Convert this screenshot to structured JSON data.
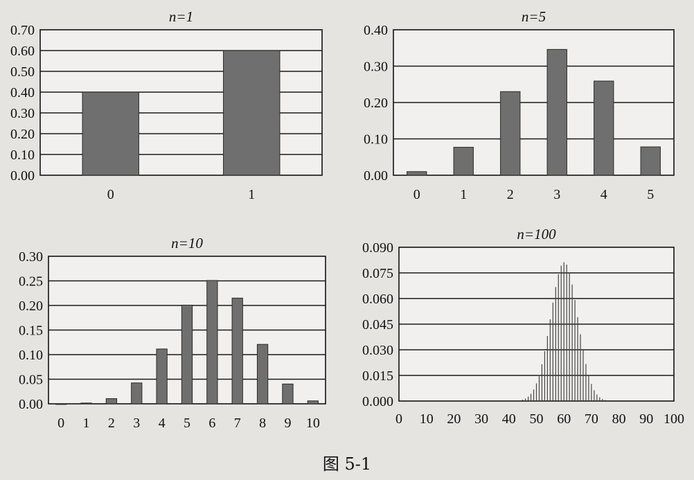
{
  "caption": "图 5-1",
  "chart_data": [
    {
      "type": "bar",
      "title": "n=1",
      "categories": [
        "0",
        "1"
      ],
      "values": [
        0.4,
        0.6
      ],
      "ylim": [
        0,
        0.7
      ],
      "yticks": [
        "0.00",
        "0.10",
        "0.20",
        "0.30",
        "0.40",
        "0.50",
        "0.60",
        "0.70"
      ],
      "grid": true
    },
    {
      "type": "bar",
      "title": "n=5",
      "categories": [
        "0",
        "1",
        "2",
        "3",
        "4",
        "5"
      ],
      "values": [
        0.01,
        0.077,
        0.23,
        0.346,
        0.259,
        0.078
      ],
      "ylim": [
        0,
        0.4
      ],
      "yticks": [
        "0.00",
        "0.10",
        "0.20",
        "0.30",
        "0.40"
      ],
      "grid": true
    },
    {
      "type": "bar",
      "title": "n=10",
      "categories": [
        "0",
        "1",
        "2",
        "3",
        "4",
        "5",
        "6",
        "7",
        "8",
        "9",
        "10"
      ],
      "values": [
        0.0001,
        0.0016,
        0.0106,
        0.0425,
        0.1115,
        0.2007,
        0.2508,
        0.215,
        0.1209,
        0.0403,
        0.006
      ],
      "ylim": [
        0,
        0.3
      ],
      "yticks": [
        "0.00",
        "0.05",
        "0.10",
        "0.15",
        "0.20",
        "0.25",
        "0.30"
      ],
      "grid": true
    },
    {
      "type": "bar",
      "title": "n=100",
      "categories": [
        "0",
        "10",
        "20",
        "30",
        "40",
        "50",
        "60",
        "70",
        "80",
        "90",
        "100"
      ],
      "distribution": {
        "n": 100,
        "p": 0.6
      },
      "x_range": [
        0,
        100
      ],
      "ylim": [
        0,
        0.09
      ],
      "yticks": [
        "0.000",
        "0.015",
        "0.030",
        "0.045",
        "0.060",
        "0.075",
        "0.090"
      ],
      "grid": true
    }
  ]
}
